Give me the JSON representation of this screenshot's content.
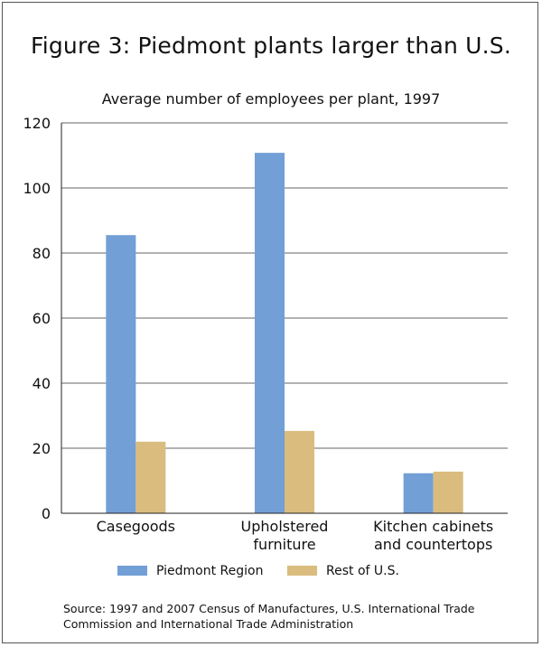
{
  "title": "Figure 3: Piedmont plants larger than U.S.",
  "subtitle": "Average number of employees per plant, 1997",
  "source": "Source: 1997 and 2007 Census of Manufactures, U.S. International Trade Commission and International Trade Administration",
  "chart_data": {
    "type": "bar",
    "categories": [
      [
        "Casegoods"
      ],
      [
        "Upholstered",
        "furniture"
      ],
      [
        "Kitchen cabinets",
        "and countertops"
      ]
    ],
    "series": [
      {
        "name": "Piedmont Region",
        "values": [
          85.5,
          110.8,
          12.3
        ]
      },
      {
        "name": "Rest of U.S.",
        "values": [
          22,
          25.3,
          12.8
        ]
      }
    ],
    "ylim": [
      0,
      120
    ],
    "yticks": [
      0,
      20,
      40,
      60,
      80,
      100,
      120
    ],
    "grid": true,
    "legend_position": "bottom",
    "colors": {
      "series": [
        "#729fd6",
        "#d9bc7e"
      ],
      "grid": "#333333"
    }
  }
}
